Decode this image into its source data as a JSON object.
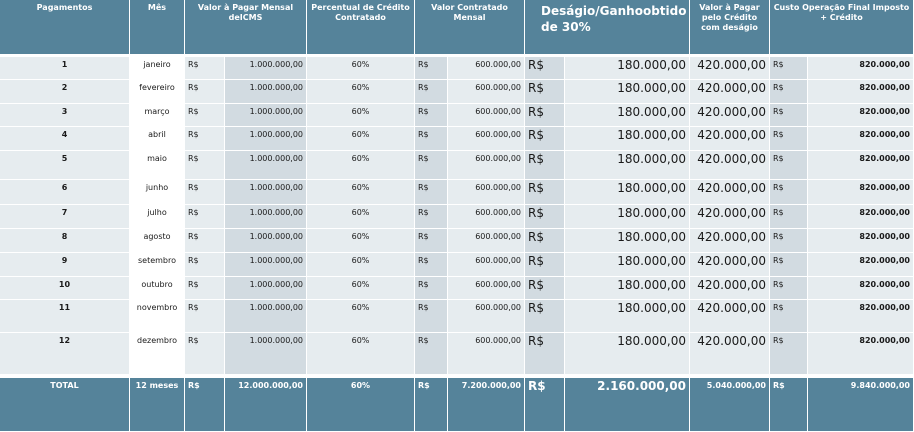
{
  "table": {
    "header": [
      "Pagamentos",
      "Mês",
      "Valor à Pagar Mensal deICMS",
      "Percentual de Crédito Contratado",
      "Valor Contratado Mensal",
      "Deságio/Ganhoobtido de 30%",
      "Valor à Pagar pelo Crédito com deságio",
      "Custo Operação Final Imposto + Crédito"
    ],
    "rows": [
      [
        "1",
        "janeiro",
        "R$",
        "1.000.000,00",
        "60%",
        "R$",
        "600.000,00",
        "R$",
        "180.000,00",
        "420.000,00",
        "R$",
        "820.000,00"
      ],
      [
        "2",
        "fevereiro",
        "R$",
        "1.000.000,00",
        "60%",
        "R$",
        "600.000,00",
        "R$",
        "180.000,00",
        "420.000,00",
        "R$",
        "820.000,00"
      ],
      [
        "3",
        "março",
        "R$",
        "1.000.000,00",
        "60%",
        "R$",
        "600.000,00",
        "R$",
        "180.000,00",
        "420.000,00",
        "R$",
        "820.000,00"
      ],
      [
        "4",
        "abril",
        "R$",
        "1.000.000,00",
        "60%",
        "R$",
        "600.000,00",
        "R$",
        "180.000,00",
        "420.000,00",
        "R$",
        "820.000,00"
      ],
      [
        "5",
        "maio",
        "R$",
        "1.000.000,00",
        "60%",
        "R$",
        "600.000,00",
        "R$",
        "180.000,00",
        "420.000,00",
        "R$",
        "820.000,00"
      ],
      [
        "6",
        "junho",
        "R$",
        "1.000.000,00",
        "60%",
        "R$",
        "600.000,00",
        "R$",
        "180.000,00",
        "420.000,00",
        "R$",
        "820.000,00"
      ],
      [
        "7",
        "julho",
        "R$",
        "1.000.000,00",
        "60%",
        "R$",
        "600.000,00",
        "R$",
        "180.000,00",
        "420.000,00",
        "R$",
        "820.000,00"
      ],
      [
        "8",
        "agosto",
        "R$",
        "1.000.000,00",
        "60%",
        "R$",
        "600.000,00",
        "R$",
        "180.000,00",
        "420.000,00",
        "R$",
        "820.000,00"
      ],
      [
        "9",
        "setembro",
        "R$",
        "1.000.000,00",
        "60%",
        "R$",
        "600.000,00",
        "R$",
        "180.000,00",
        "420.000,00",
        "R$",
        "820.000,00"
      ],
      [
        "10",
        "outubro",
        "R$",
        "1.000.000,00",
        "60%",
        "R$",
        "600.000,00",
        "R$",
        "180.000,00",
        "420.000,00",
        "R$",
        "820.000,00"
      ],
      [
        "11",
        "novembro",
        "R$",
        "1.000.000,00",
        "60%",
        "R$",
        "600.000,00",
        "R$",
        "180.000,00",
        "420.000,00",
        "R$",
        "820.000,00"
      ],
      [
        "12",
        "dezembro",
        "R$",
        "1.000.000,00",
        "60%",
        "R$",
        "600.000,00",
        "R$",
        "180.000,00",
        "420.000,00",
        "R$",
        "820.000,00"
      ]
    ],
    "total": [
      "TOTAL",
      "12 meses",
      "R$",
      "12.000.000,00",
      "60%",
      "R$",
      "7.200.000,00",
      "R$",
      "2.160.000,00",
      "5.040.000,00",
      "R$",
      "9.840.000,00"
    ]
  }
}
